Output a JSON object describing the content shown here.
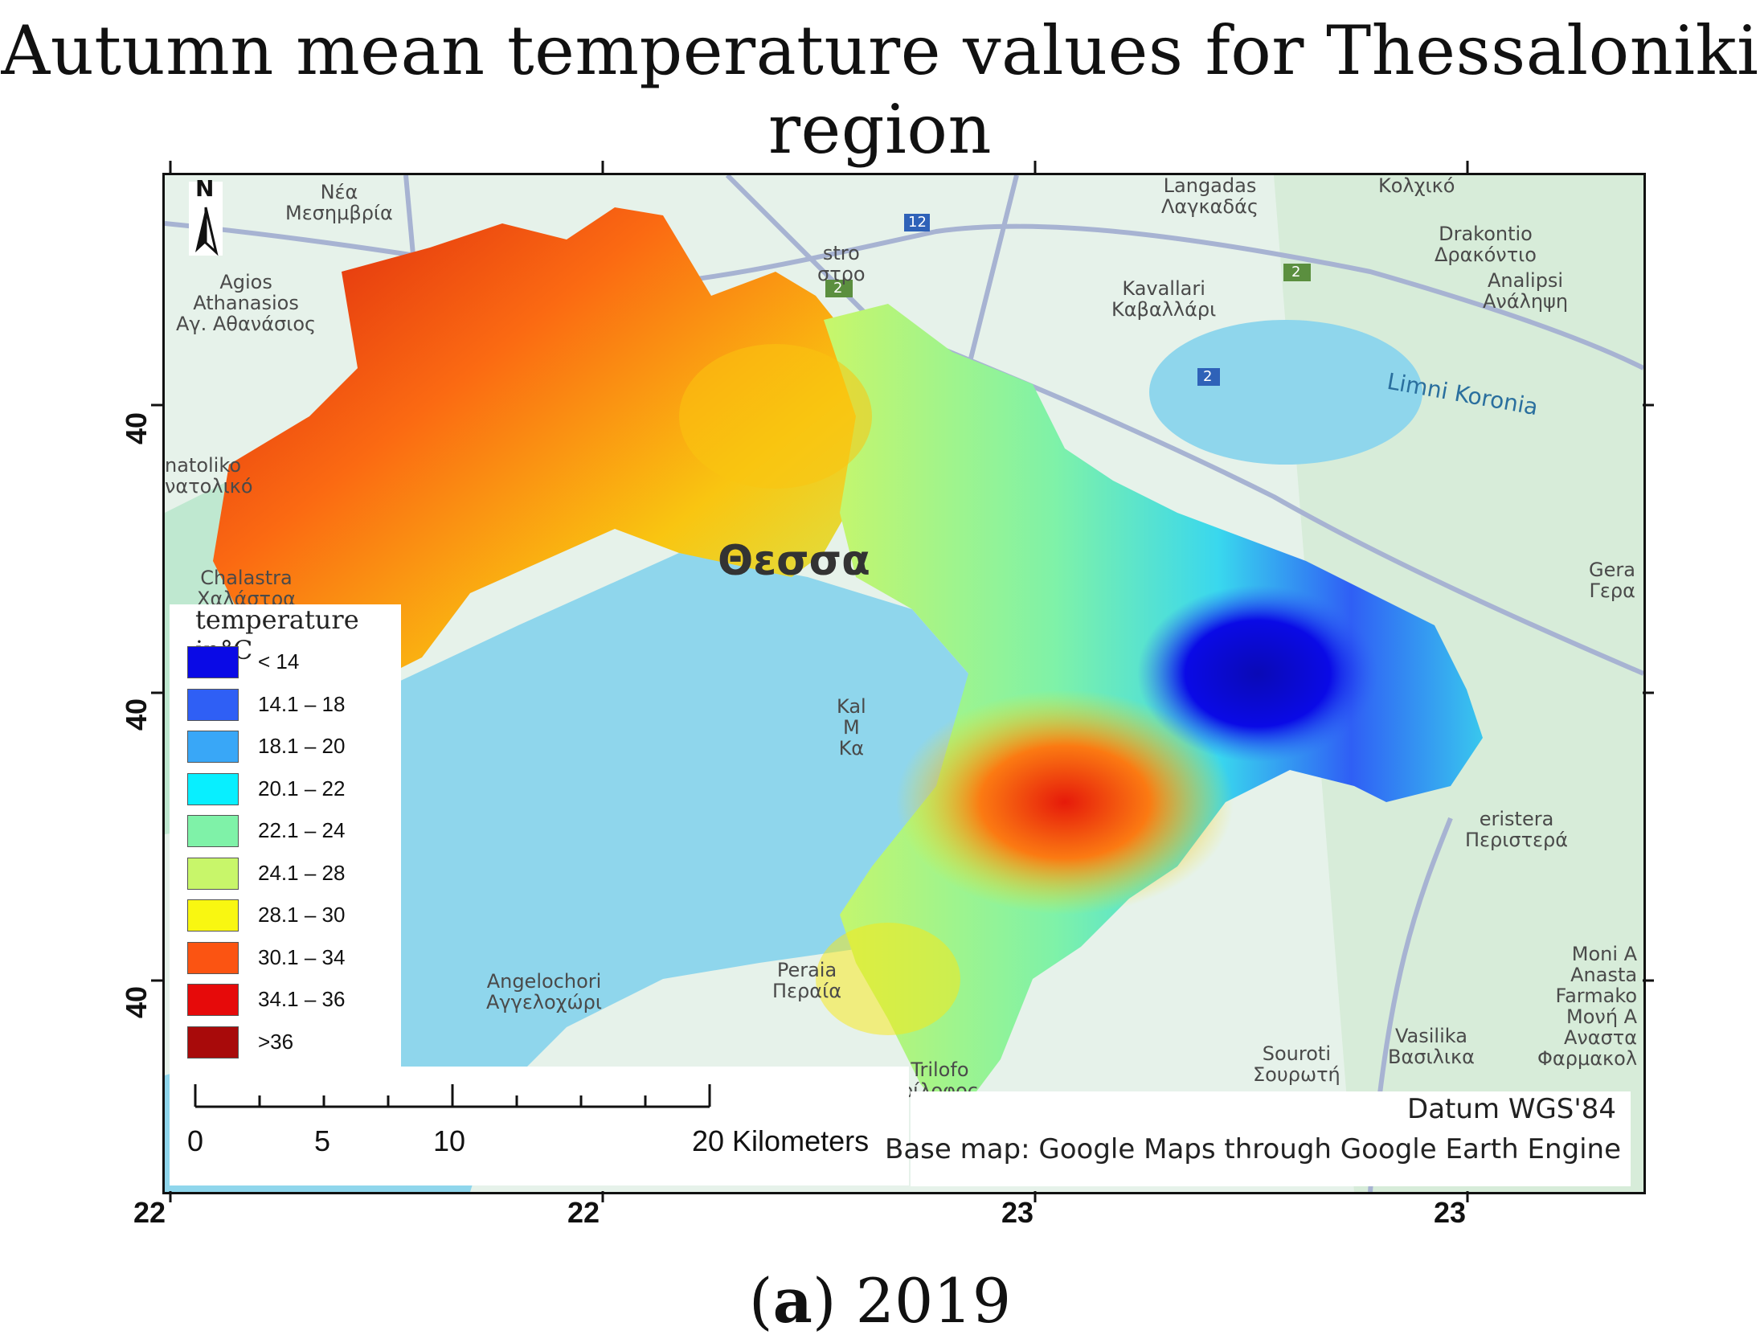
{
  "title": "Autumn mean temperature values for Thessaloniki region",
  "caption": {
    "letter": "a",
    "year": "2019"
  },
  "axes": {
    "bottom_ticks": [
      "22",
      "22",
      "23",
      "23"
    ],
    "left_ticks": [
      "40",
      "40",
      "40"
    ]
  },
  "north_arrow": {
    "label": "N",
    "icon": "north-arrow-icon"
  },
  "places": {
    "nea_mesimvria": "Νέα\nΜεσημβρία",
    "agios_athanasios": "Agios\nAthanasios\nΑγ. Αθανάσιος",
    "anatoliko": "natoliko\nνατολικό",
    "chalastra": "Chalastra\nΧαλάστρα",
    "langadas": "Langadas\nΛαγκαδάς",
    "kolchiko": "Κολχικό",
    "drakontio": "Drakontio\nΔρακόντιο",
    "analipsi": "Analipsi\nΑνάληψη",
    "kavallari": "Kavallari\nΚαβαλλάρι",
    "gera": "Gera\nΓερα",
    "peristera": "eristera\nΠεριστερά",
    "angelochori": "Angelochori\nΑγγελοχώρι",
    "peraia": "Peraia\nΠεραία",
    "trilofo": "Trilofo\nρίλοφος",
    "souroti": "Souroti\nΣουρωτή",
    "vasilika": "Vasilika\nΒασιλικα",
    "moni": "Moni A\nAnasta\nFarmako\nΜονή Α\nΑναστα\nΦαρμακολ",
    "kastro": "stro\nστρο",
    "kal": "Kal\nΜ\nΚα",
    "city": "Θεσσα",
    "lake": "Limni Koronia"
  },
  "roads": [
    "12",
    "2",
    "2",
    "2"
  ],
  "legend": {
    "title": "temperature in°C",
    "items": [
      {
        "label": "< 14",
        "color": "#0a0ae6"
      },
      {
        "label": "14.1 – 18",
        "color": "#2f5ff5"
      },
      {
        "label": "18.1 – 20",
        "color": "#39a7f7"
      },
      {
        "label": "20.1 – 22",
        "color": "#08efff"
      },
      {
        "label": "22.1 – 24",
        "color": "#7ff2a8"
      },
      {
        "label": "24.1 – 28",
        "color": "#c8f66a"
      },
      {
        "label": "28.1 – 30",
        "color": "#f9f711"
      },
      {
        "label": "30.1 – 34",
        "color": "#fb5412"
      },
      {
        "label": "34.1 – 36",
        "color": "#e60a0a"
      },
      {
        "label": ">36",
        "color": "#a80a0a"
      }
    ]
  },
  "scale_bar": {
    "labels": [
      "0",
      "5",
      "10",
      "20 Kilometers"
    ]
  },
  "credits": {
    "datum": "Datum WGS'84",
    "basemap": "Base map: Google Maps through Google Earth Engine"
  },
  "colors": {
    "sea": "#8fd6ec",
    "land": "#e6f2ea",
    "green_land": "#bfe8d0",
    "road": "#a7b3d2"
  }
}
